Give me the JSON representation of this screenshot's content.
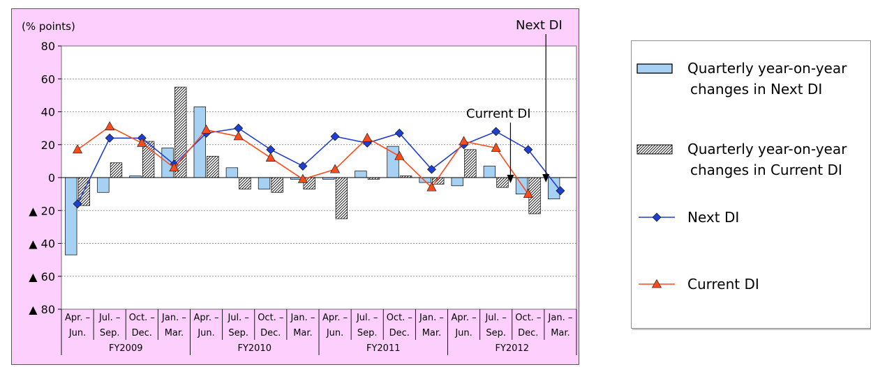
{
  "chart_data": {
    "type": "bar",
    "y_unit_label": "(% points)",
    "ylim": [
      -80,
      80
    ],
    "y_ticks": [
      {
        "value": 80,
        "label": "80"
      },
      {
        "value": 60,
        "label": "60"
      },
      {
        "value": 40,
        "label": "40"
      },
      {
        "value": 20,
        "label": "20"
      },
      {
        "value": 0,
        "label": "0"
      },
      {
        "value": -20,
        "label": "▲ 20"
      },
      {
        "value": -40,
        "label": "▲ 40"
      },
      {
        "value": -60,
        "label": "▲ 60"
      },
      {
        "value": -80,
        "label": "▲ 80"
      }
    ],
    "grid": true,
    "categories": [
      {
        "top": "Apr. –",
        "bottom": "Jun."
      },
      {
        "top": "Jul. –",
        "bottom": "Sep."
      },
      {
        "top": "Oct. –",
        "bottom": "Dec."
      },
      {
        "top": "Jan. –",
        "bottom": "Mar."
      },
      {
        "top": "Apr. –",
        "bottom": "Jun."
      },
      {
        "top": "Jul. –",
        "bottom": "Sep."
      },
      {
        "top": "Oct. –",
        "bottom": "Dec."
      },
      {
        "top": "Jan. –",
        "bottom": "Mar."
      },
      {
        "top": "Apr. –",
        "bottom": "Jun."
      },
      {
        "top": "Jul. –",
        "bottom": "Sep."
      },
      {
        "top": "Oct. –",
        "bottom": "Dec."
      },
      {
        "top": "Jan. –",
        "bottom": "Mar."
      },
      {
        "top": "Apr. –",
        "bottom": "Jun."
      },
      {
        "top": "Jul. –",
        "bottom": "Sep."
      },
      {
        "top": "Oct. –",
        "bottom": "Dec."
      },
      {
        "top": "Jan. –",
        "bottom": "Mar."
      }
    ],
    "groups": [
      {
        "label": "FY2009",
        "span": 4
      },
      {
        "label": "FY2010",
        "span": 4
      },
      {
        "label": "FY2011",
        "span": 4
      },
      {
        "label": "FY2012",
        "span": 4
      }
    ],
    "series": [
      {
        "name": "Quarterly year-on-year changes in Next DI",
        "kind": "bar",
        "color": "#a6d1f2",
        "values": [
          -47,
          -9,
          1,
          18,
          43,
          6,
          -7,
          -1,
          -1,
          4,
          19,
          -3,
          -5,
          7,
          -10,
          -13
        ]
      },
      {
        "name": "Quarterly year-on-year changes in Current DI",
        "kind": "bar-hatched",
        "color": "#ffffff",
        "values": [
          -17,
          9,
          22,
          55,
          13,
          -7,
          -9,
          -7,
          -25,
          -1,
          1,
          -4,
          17,
          -6,
          -22,
          null
        ]
      },
      {
        "name": "Next DI",
        "kind": "line",
        "marker": "diamond",
        "color": "#1f3fd0",
        "values": [
          -16,
          24,
          24,
          8,
          27,
          30,
          17,
          7,
          25,
          21,
          27,
          5,
          20,
          28,
          17,
          -8
        ]
      },
      {
        "name": "Current DI",
        "kind": "line",
        "marker": "triangle",
        "color": "#ff4a1a",
        "values": [
          17,
          31,
          21,
          6,
          29,
          25,
          12,
          -1,
          5,
          24,
          13,
          -6,
          22,
          18,
          -10,
          null
        ]
      }
    ],
    "annotations": [
      {
        "text": "Current DI",
        "index": 14
      },
      {
        "text": "Next DI",
        "index": 15
      }
    ]
  },
  "legend": {
    "items": [
      {
        "lines": [
          "Quarterly year-on-year",
          "changes in Next DI"
        ]
      },
      {
        "lines": [
          "Quarterly year-on-year",
          "changes in Current DI"
        ]
      },
      {
        "lines": [
          "Next DI"
        ]
      },
      {
        "lines": [
          "Current DI"
        ]
      }
    ]
  }
}
